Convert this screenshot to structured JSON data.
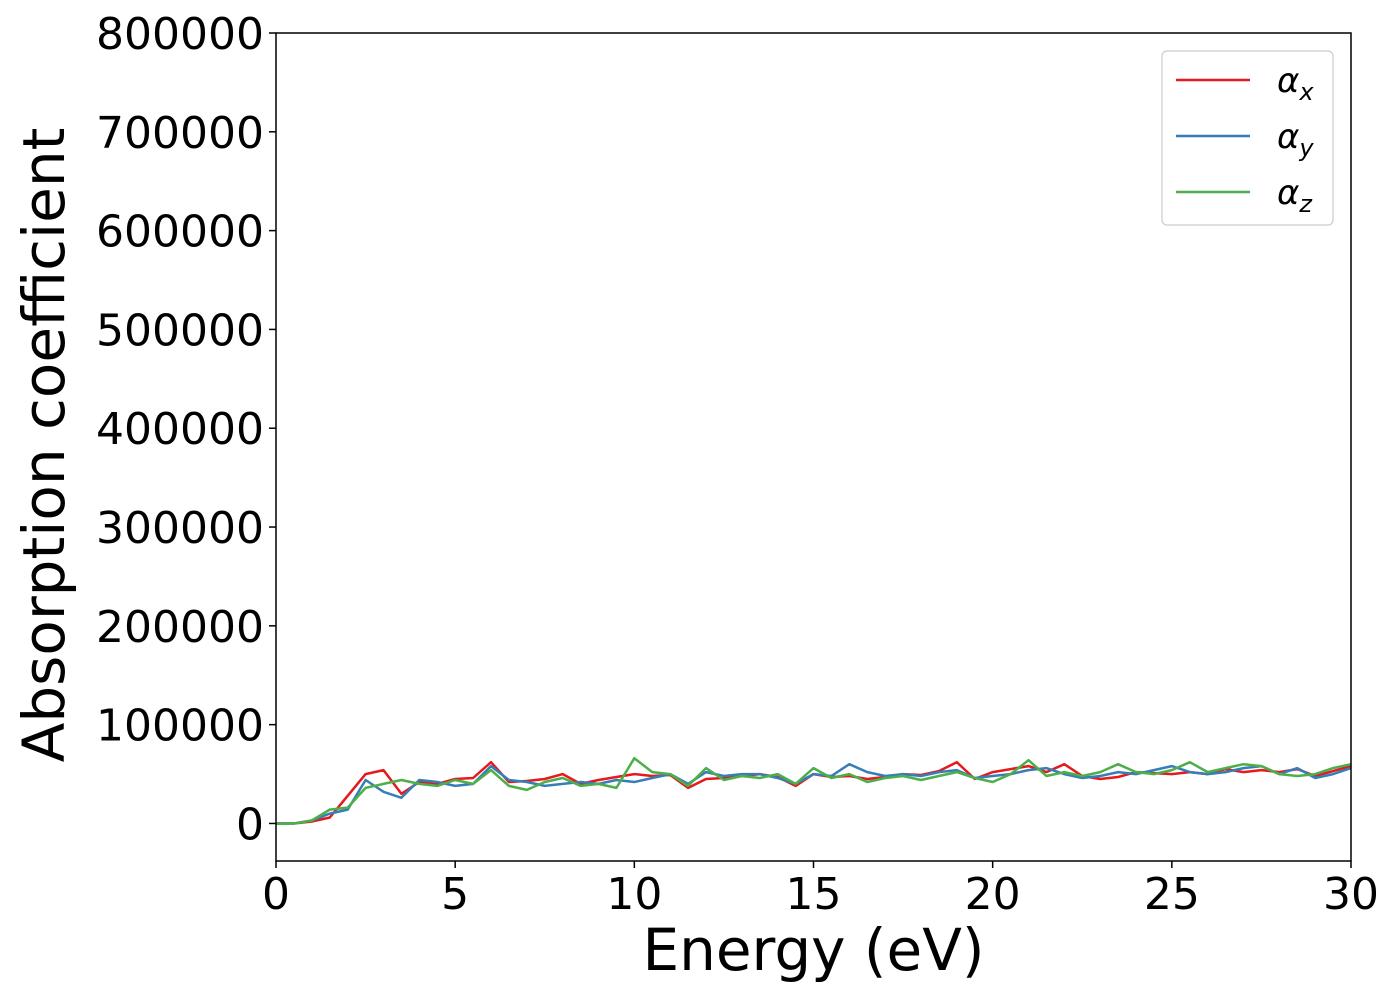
{
  "chart_data": {
    "type": "line",
    "xlabel": "Energy (eV)",
    "ylabel": "Absorption coefficient",
    "xlim": [
      0,
      30
    ],
    "ylim": [
      -38000,
      800000
    ],
    "x_ticks": [
      0,
      5,
      10,
      15,
      20,
      25,
      30
    ],
    "x_tick_labels": [
      "0",
      "5",
      "10",
      "15",
      "20",
      "25",
      "30"
    ],
    "y_ticks": [
      0,
      100000,
      200000,
      300000,
      400000,
      500000,
      600000,
      700000,
      800000
    ],
    "y_tick_labels": [
      "0",
      "100000",
      "200000",
      "300000",
      "400000",
      "500000",
      "600000",
      "700000",
      "800000"
    ],
    "grid": false,
    "legend_position": "top-right",
    "x": [
      0,
      0.5,
      1,
      1.5,
      2,
      2.5,
      3,
      3.5,
      4,
      4.5,
      5,
      5.5,
      6,
      6.5,
      7,
      7.5,
      8,
      8.5,
      9,
      9.5,
      10,
      10.5,
      11,
      11.5,
      12,
      12.5,
      13,
      13.5,
      14,
      14.5,
      15,
      15.5,
      16,
      16.5,
      17,
      17.5,
      18,
      18.5,
      19,
      19.5,
      20,
      20.5,
      21,
      21.5,
      22,
      22.5,
      23,
      23.5,
      24,
      24.5,
      25,
      25.5,
      26,
      26.5,
      27,
      27.5,
      28,
      28.5,
      29,
      29.5,
      30
    ],
    "series": [
      {
        "name": "α",
        "subscript": "x",
        "color": "#e41a1c",
        "values": [
          0,
          0,
          2000,
          6000,
          28000,
          50000,
          54000,
          30000,
          42000,
          40000,
          45000,
          46000,
          62000,
          42000,
          43000,
          45000,
          50000,
          40000,
          44000,
          47000,
          50000,
          48000,
          49000,
          36000,
          45000,
          46000,
          48000,
          50000,
          47000,
          38000,
          50000,
          47000,
          48000,
          45000,
          47000,
          50000,
          49000,
          53000,
          62000,
          45000,
          52000,
          55000,
          58000,
          52000,
          60000,
          48000,
          45000,
          47000,
          52000,
          51000,
          50000,
          52000,
          50000,
          55000,
          52000,
          54000,
          52000,
          55000,
          48000,
          53000,
          58000
        ]
      },
      {
        "name": "α",
        "subscript": "y",
        "color": "#377eb8",
        "values": [
          0,
          0,
          3000,
          10000,
          14000,
          44000,
          32000,
          26000,
          44000,
          42000,
          38000,
          40000,
          58000,
          44000,
          42000,
          38000,
          40000,
          42000,
          40000,
          44000,
          42000,
          46000,
          50000,
          40000,
          52000,
          48000,
          50000,
          50000,
          46000,
          40000,
          50000,
          48000,
          60000,
          52000,
          48000,
          50000,
          48000,
          52000,
          54000,
          46000,
          48000,
          50000,
          54000,
          56000,
          50000,
          46000,
          48000,
          52000,
          50000,
          54000,
          58000,
          52000,
          50000,
          52000,
          56000,
          58000,
          50000,
          56000,
          46000,
          50000,
          56000
        ]
      },
      {
        "name": "α",
        "subscript": "z",
        "color": "#4daf4a",
        "values": [
          0,
          0,
          3000,
          14000,
          16000,
          36000,
          40000,
          44000,
          40000,
          38000,
          44000,
          40000,
          54000,
          38000,
          34000,
          42000,
          46000,
          38000,
          40000,
          36000,
          66000,
          52000,
          50000,
          38000,
          56000,
          44000,
          48000,
          46000,
          50000,
          40000,
          56000,
          46000,
          50000,
          42000,
          46000,
          48000,
          44000,
          48000,
          52000,
          46000,
          42000,
          50000,
          64000,
          48000,
          52000,
          48000,
          52000,
          60000,
          52000,
          50000,
          54000,
          62000,
          52000,
          56000,
          60000,
          58000,
          50000,
          48000,
          50000,
          56000,
          60000
        ]
      }
    ]
  }
}
